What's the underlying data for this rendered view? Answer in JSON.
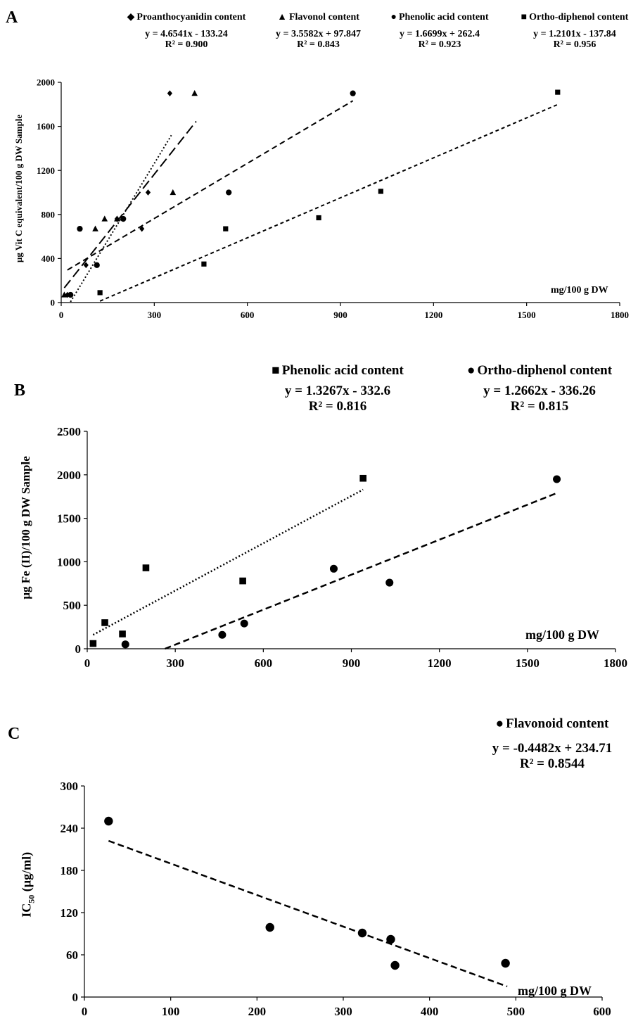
{
  "chart_data": [
    {
      "type": "scatter",
      "panel": "A",
      "ylabel": "µg Vit C equivalent/100 g DW Sample",
      "xlabel": "mg/100 g DW",
      "xlim": [
        0,
        1800
      ],
      "ylim": [
        0,
        2000
      ],
      "xticks": [
        0,
        300,
        600,
        900,
        1200,
        1500,
        1800
      ],
      "yticks": [
        0,
        400,
        800,
        1200,
        1600,
        2000
      ],
      "legend_position": "top",
      "series": [
        {
          "name": "Proanthocyanidin content",
          "marker": "diamond",
          "dash": "2,3",
          "equation": "y = 4.6541x - 133.24",
          "r2": "R² = 0.900",
          "slope": 4.6541,
          "intercept": -133.24,
          "xrange": [
            30,
            355
          ],
          "points": [
            [
              20,
              70
            ],
            [
              80,
              340
            ],
            [
              180,
              760
            ],
            [
              260,
              670
            ],
            [
              280,
              1000
            ],
            [
              350,
              1900
            ]
          ]
        },
        {
          "name": "Flavonol content",
          "marker": "triangle",
          "dash": "14,6",
          "equation": "y = 3.5582x + 97.847",
          "r2": "R² = 0.843",
          "slope": 3.5582,
          "intercept": 97.847,
          "xrange": [
            10,
            435
          ],
          "points": [
            [
              10,
              70
            ],
            [
              110,
              670
            ],
            [
              140,
              760
            ],
            [
              180,
              760
            ],
            [
              360,
              1000
            ],
            [
              430,
              1900
            ]
          ]
        },
        {
          "name": "Phenolic acid content",
          "marker": "circle",
          "dash": "8,5",
          "equation": "y = 1.6699x + 262.4",
          "r2": "R² = 0.923",
          "slope": 1.6699,
          "intercept": 262.4,
          "xrange": [
            20,
            940
          ],
          "points": [
            [
              30,
              70
            ],
            [
              60,
              670
            ],
            [
              115,
              340
            ],
            [
              200,
              760
            ],
            [
              540,
              1000
            ],
            [
              940,
              1900
            ]
          ]
        },
        {
          "name": "Ortho-diphenol content",
          "marker": "square",
          "dash": "5,4",
          "equation": "y = 1.2101x - 137.84",
          "r2": "R² = 0.956",
          "slope": 1.2101,
          "intercept": -137.84,
          "xrange": [
            125,
            1600
          ],
          "points": [
            [
              125,
              90
            ],
            [
              460,
              350
            ],
            [
              530,
              670
            ],
            [
              830,
              770
            ],
            [
              1030,
              1010
            ],
            [
              1600,
              1910
            ]
          ]
        }
      ]
    },
    {
      "type": "scatter",
      "panel": "B",
      "ylabel": "µg Fe (II)/100 g DW Sample",
      "xlabel": "mg/100 g DW",
      "xlim": [
        0,
        1800
      ],
      "ylim": [
        0,
        2500
      ],
      "xticks": [
        0,
        300,
        600,
        900,
        1200,
        1500,
        1800
      ],
      "yticks": [
        0,
        500,
        1000,
        1500,
        2000,
        2500
      ],
      "legend_position": "top-right",
      "series": [
        {
          "name": "Phenolic acid content",
          "marker": "square",
          "dash": "2,3",
          "equation": "y = 1.3267x - 332.6",
          "r2": "R² = 0.816",
          "slope": 1.3267,
          "intercept": -332.6,
          "line_points": [
            [
              20,
              160
            ],
            [
              940,
              1830
            ]
          ],
          "points": [
            [
              20,
              60
            ],
            [
              60,
              300
            ],
            [
              120,
              170
            ],
            [
              200,
              930
            ],
            [
              530,
              780
            ],
            [
              940,
              1960
            ]
          ]
        },
        {
          "name": "Ortho-diphenol content",
          "marker": "circle",
          "dash": "9,5",
          "equation": "y = 1.2662x - 336.26",
          "r2": "R² = 0.815",
          "slope": 1.2662,
          "intercept": -336.26,
          "line_points": [
            [
              265,
              0
            ],
            [
              1600,
              1790
            ]
          ],
          "points": [
            [
              130,
              50
            ],
            [
              460,
              160
            ],
            [
              535,
              290
            ],
            [
              840,
              920
            ],
            [
              1030,
              760
            ],
            [
              1600,
              1950
            ]
          ]
        }
      ]
    },
    {
      "type": "scatter",
      "panel": "C",
      "ylabel": "IC50 (µg/ml)",
      "xlabel": "mg/100 g DW",
      "xlim": [
        0,
        600
      ],
      "ylim": [
        0,
        300
      ],
      "xticks": [
        0,
        100,
        200,
        300,
        400,
        500,
        600
      ],
      "yticks": [
        0,
        60,
        120,
        180,
        240,
        300
      ],
      "legend_position": "top-right",
      "series": [
        {
          "name": "Flavonoid content",
          "marker": "circle",
          "dash": "9,5",
          "equation": "y = -0.4482x + 234.71",
          "r2": "R² = 0.8544",
          "slope": -0.4482,
          "intercept": 234.71,
          "line_points": [
            [
              28,
              222
            ],
            [
              490,
              15
            ]
          ],
          "points": [
            [
              28,
              250
            ],
            [
              215,
              99
            ],
            [
              322,
              91
            ],
            [
              355,
              82
            ],
            [
              360,
              45
            ],
            [
              488,
              48
            ]
          ]
        }
      ]
    }
  ],
  "panels": {
    "A": {
      "letter": "A",
      "ylabel": "µg Vit C equivalent/100 g DW Sample",
      "unit": "mg/100 g DW"
    },
    "B": {
      "letter": "B",
      "ylabel": "µg Fe (II)/100 g DW Sample",
      "unit": "mg/100 g DW"
    },
    "C": {
      "letter": "C",
      "ylabel_main": "IC",
      "ylabel_sub": "50",
      "ylabel_rest": " (µg/ml)",
      "unit": "mg/100 g DW"
    }
  }
}
